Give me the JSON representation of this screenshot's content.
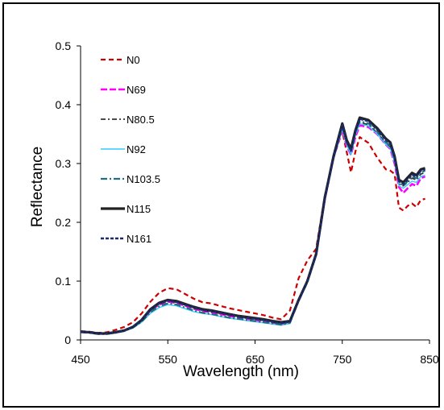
{
  "chart_data": {
    "type": "line",
    "title": "",
    "xlabel": "Wavelength (nm)",
    "ylabel": "Reflectance",
    "xlim": [
      450,
      850
    ],
    "ylim": [
      0,
      0.5
    ],
    "xticks": [
      450,
      550,
      650,
      750,
      850
    ],
    "yticks": [
      0,
      0.1,
      0.2,
      0.3,
      0.4,
      0.5
    ],
    "ytick_labels": [
      "0",
      "0.1",
      "0.2",
      "0.3",
      "0.4",
      "0.5"
    ],
    "grid": false,
    "legend": "top-left",
    "series": [
      {
        "name": "N0",
        "color": "#cc0000",
        "dash": "6,4",
        "width": 2.2,
        "x": [
          450,
          460,
          470,
          480,
          490,
          500,
          510,
          520,
          530,
          540,
          550,
          560,
          570,
          580,
          590,
          600,
          610,
          620,
          630,
          640,
          650,
          660,
          670,
          680,
          690,
          700,
          710,
          720,
          730,
          740,
          750,
          755,
          760,
          765,
          770,
          780,
          790,
          800,
          805,
          810,
          815,
          820,
          825,
          830,
          835,
          840,
          845
        ],
        "y": [
          0.015,
          0.014,
          0.012,
          0.013,
          0.017,
          0.022,
          0.03,
          0.045,
          0.065,
          0.08,
          0.088,
          0.086,
          0.078,
          0.07,
          0.064,
          0.062,
          0.058,
          0.054,
          0.051,
          0.048,
          0.045,
          0.042,
          0.038,
          0.035,
          0.05,
          0.105,
          0.135,
          0.155,
          0.245,
          0.31,
          0.355,
          0.32,
          0.285,
          0.32,
          0.345,
          0.335,
          0.31,
          0.29,
          0.288,
          0.282,
          0.225,
          0.22,
          0.228,
          0.232,
          0.226,
          0.238,
          0.24
        ]
      },
      {
        "name": "N69",
        "color": "#ff00ff",
        "dash": "8,3",
        "width": 2.6,
        "x": [
          450,
          460,
          470,
          480,
          490,
          500,
          510,
          520,
          530,
          540,
          550,
          560,
          570,
          580,
          590,
          600,
          610,
          620,
          630,
          640,
          650,
          660,
          670,
          680,
          690,
          700,
          710,
          720,
          730,
          740,
          750,
          755,
          760,
          765,
          770,
          780,
          790,
          800,
          805,
          810,
          815,
          820,
          825,
          830,
          835,
          840,
          845
        ],
        "y": [
          0.014,
          0.013,
          0.011,
          0.011,
          0.013,
          0.016,
          0.022,
          0.033,
          0.05,
          0.06,
          0.065,
          0.063,
          0.058,
          0.053,
          0.049,
          0.047,
          0.044,
          0.041,
          0.038,
          0.036,
          0.034,
          0.032,
          0.029,
          0.027,
          0.03,
          0.068,
          0.1,
          0.145,
          0.24,
          0.31,
          0.358,
          0.33,
          0.315,
          0.345,
          0.365,
          0.362,
          0.35,
          0.332,
          0.325,
          0.3,
          0.26,
          0.25,
          0.258,
          0.265,
          0.262,
          0.275,
          0.278
        ]
      },
      {
        "name": "N80.5",
        "color": "#333333",
        "dash": "6,3,2,3",
        "width": 1.8,
        "x": [
          450,
          460,
          470,
          480,
          490,
          500,
          510,
          520,
          530,
          540,
          550,
          560,
          570,
          580,
          590,
          600,
          610,
          620,
          630,
          640,
          650,
          660,
          670,
          680,
          690,
          700,
          710,
          720,
          730,
          740,
          750,
          755,
          760,
          765,
          770,
          780,
          790,
          800,
          805,
          810,
          815,
          820,
          825,
          830,
          835,
          840,
          845
        ],
        "y": [
          0.014,
          0.013,
          0.011,
          0.011,
          0.013,
          0.016,
          0.022,
          0.033,
          0.05,
          0.061,
          0.066,
          0.064,
          0.059,
          0.054,
          0.05,
          0.048,
          0.045,
          0.042,
          0.039,
          0.037,
          0.035,
          0.033,
          0.03,
          0.028,
          0.031,
          0.068,
          0.1,
          0.145,
          0.24,
          0.31,
          0.36,
          0.335,
          0.318,
          0.35,
          0.37,
          0.366,
          0.352,
          0.335,
          0.328,
          0.305,
          0.265,
          0.262,
          0.268,
          0.275,
          0.272,
          0.282,
          0.285
        ]
      },
      {
        "name": "N92",
        "color": "#33ccff",
        "dash": "",
        "width": 1.4,
        "x": [
          450,
          460,
          470,
          480,
          490,
          500,
          510,
          520,
          530,
          540,
          550,
          560,
          570,
          580,
          590,
          600,
          610,
          620,
          630,
          640,
          650,
          660,
          670,
          680,
          690,
          700,
          710,
          720,
          730,
          740,
          750,
          755,
          760,
          765,
          770,
          780,
          790,
          800,
          805,
          810,
          815,
          820,
          825,
          830,
          835,
          840,
          845
        ],
        "y": [
          0.013,
          0.012,
          0.01,
          0.01,
          0.012,
          0.015,
          0.02,
          0.03,
          0.045,
          0.055,
          0.06,
          0.058,
          0.053,
          0.048,
          0.045,
          0.043,
          0.04,
          0.037,
          0.035,
          0.033,
          0.031,
          0.029,
          0.027,
          0.025,
          0.028,
          0.066,
          0.098,
          0.143,
          0.238,
          0.308,
          0.358,
          0.332,
          0.315,
          0.348,
          0.368,
          0.364,
          0.35,
          0.332,
          0.326,
          0.302,
          0.262,
          0.258,
          0.264,
          0.27,
          0.268,
          0.278,
          0.28
        ]
      },
      {
        "name": "N103.5",
        "color": "#1f6f7f",
        "dash": "8,3,2,3",
        "width": 2.2,
        "x": [
          450,
          460,
          470,
          480,
          490,
          500,
          510,
          520,
          530,
          540,
          550,
          560,
          570,
          580,
          590,
          600,
          610,
          620,
          630,
          640,
          650,
          660,
          670,
          680,
          690,
          700,
          710,
          720,
          730,
          740,
          750,
          755,
          760,
          765,
          770,
          780,
          790,
          800,
          805,
          810,
          815,
          820,
          825,
          830,
          835,
          840,
          845
        ],
        "y": [
          0.013,
          0.012,
          0.01,
          0.01,
          0.012,
          0.015,
          0.021,
          0.031,
          0.047,
          0.057,
          0.062,
          0.06,
          0.055,
          0.05,
          0.046,
          0.044,
          0.041,
          0.038,
          0.036,
          0.034,
          0.032,
          0.03,
          0.028,
          0.026,
          0.029,
          0.066,
          0.098,
          0.144,
          0.24,
          0.31,
          0.362,
          0.335,
          0.32,
          0.352,
          0.372,
          0.368,
          0.355,
          0.336,
          0.33,
          0.308,
          0.268,
          0.262,
          0.27,
          0.278,
          0.275,
          0.285,
          0.288
        ]
      },
      {
        "name": "N115",
        "color": "#222222",
        "dash": "",
        "width": 3.2,
        "x": [
          450,
          460,
          470,
          480,
          490,
          500,
          510,
          520,
          530,
          540,
          550,
          560,
          570,
          580,
          590,
          600,
          610,
          620,
          630,
          640,
          650,
          660,
          670,
          680,
          690,
          700,
          710,
          720,
          730,
          740,
          750,
          755,
          760,
          765,
          770,
          780,
          790,
          800,
          805,
          810,
          815,
          820,
          825,
          830,
          835,
          840,
          845
        ],
        "y": [
          0.014,
          0.013,
          0.011,
          0.011,
          0.013,
          0.016,
          0.022,
          0.034,
          0.052,
          0.063,
          0.068,
          0.066,
          0.061,
          0.056,
          0.052,
          0.05,
          0.047,
          0.044,
          0.041,
          0.039,
          0.037,
          0.035,
          0.032,
          0.03,
          0.032,
          0.068,
          0.1,
          0.146,
          0.242,
          0.312,
          0.368,
          0.34,
          0.325,
          0.356,
          0.378,
          0.374,
          0.36,
          0.342,
          0.336,
          0.312,
          0.272,
          0.268,
          0.276,
          0.284,
          0.28,
          0.29,
          0.292
        ]
      },
      {
        "name": "N161",
        "color": "#1a2a6c",
        "dash": "4,2",
        "width": 2.6,
        "x": [
          450,
          460,
          470,
          480,
          490,
          500,
          510,
          520,
          530,
          540,
          550,
          560,
          570,
          580,
          590,
          600,
          610,
          620,
          630,
          640,
          650,
          660,
          670,
          680,
          690,
          700,
          710,
          720,
          730,
          740,
          750,
          755,
          760,
          765,
          770,
          780,
          790,
          800,
          805,
          810,
          815,
          820,
          825,
          830,
          835,
          840,
          845
        ],
        "y": [
          0.014,
          0.013,
          0.011,
          0.011,
          0.013,
          0.016,
          0.022,
          0.034,
          0.051,
          0.062,
          0.067,
          0.065,
          0.06,
          0.055,
          0.051,
          0.049,
          0.046,
          0.043,
          0.04,
          0.038,
          0.036,
          0.034,
          0.031,
          0.029,
          0.031,
          0.067,
          0.099,
          0.145,
          0.24,
          0.31,
          0.366,
          0.338,
          0.322,
          0.354,
          0.376,
          0.372,
          0.358,
          0.34,
          0.334,
          0.31,
          0.27,
          0.265,
          0.273,
          0.281,
          0.278,
          0.288,
          0.29
        ]
      }
    ]
  }
}
